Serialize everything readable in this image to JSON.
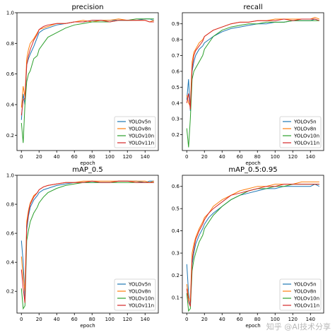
{
  "watermark": "知乎 @AI技术分享",
  "chart_data": [
    {
      "type": "line",
      "title": "precision",
      "xlabel": "epoch",
      "ylabel": "",
      "xlim": [
        -5,
        155
      ],
      "ylim": [
        0.1,
        1.0
      ],
      "xticks": [
        0,
        20,
        40,
        60,
        80,
        100,
        120,
        140
      ],
      "yticks": [
        0.2,
        0.4,
        0.6,
        0.8,
        1.0
      ],
      "legend": "bottom-right",
      "grid": false,
      "series": [
        {
          "name": "YOLOv5n",
          "color": "#1f77b4",
          "x": [
            0,
            2,
            4,
            6,
            8,
            10,
            14,
            18,
            20,
            25,
            30,
            40,
            50,
            60,
            70,
            80,
            90,
            100,
            110,
            120,
            130,
            140,
            145,
            150
          ],
          "y": [
            0.3,
            0.47,
            0.4,
            0.66,
            0.7,
            0.73,
            0.78,
            0.84,
            0.87,
            0.89,
            0.9,
            0.92,
            0.93,
            0.94,
            0.94,
            0.95,
            0.95,
            0.95,
            0.95,
            0.95,
            0.95,
            0.96,
            0.96,
            0.95
          ]
        },
        {
          "name": "YOLOv8n",
          "color": "#ff7f0e",
          "x": [
            0,
            2,
            4,
            6,
            8,
            10,
            14,
            18,
            20,
            25,
            30,
            40,
            50,
            60,
            70,
            80,
            90,
            100,
            110,
            120,
            130,
            140,
            145,
            150
          ],
          "y": [
            0.38,
            0.52,
            0.45,
            0.7,
            0.76,
            0.8,
            0.83,
            0.87,
            0.89,
            0.9,
            0.91,
            0.93,
            0.93,
            0.94,
            0.95,
            0.94,
            0.95,
            0.95,
            0.96,
            0.95,
            0.95,
            0.95,
            0.94,
            0.95
          ]
        },
        {
          "name": "YOLOv10n",
          "color": "#2ca02c",
          "x": [
            0,
            2,
            4,
            6,
            8,
            10,
            14,
            18,
            20,
            25,
            30,
            40,
            50,
            60,
            70,
            80,
            90,
            100,
            110,
            120,
            130,
            140,
            145,
            150
          ],
          "y": [
            0.28,
            0.15,
            0.4,
            0.55,
            0.6,
            0.62,
            0.7,
            0.72,
            0.76,
            0.8,
            0.84,
            0.87,
            0.9,
            0.92,
            0.93,
            0.94,
            0.94,
            0.94,
            0.95,
            0.95,
            0.96,
            0.96,
            0.96,
            0.96
          ]
        },
        {
          "name": "YOLOv11n",
          "color": "#d62728",
          "x": [
            0,
            2,
            4,
            6,
            8,
            10,
            14,
            18,
            20,
            25,
            30,
            40,
            50,
            60,
            70,
            80,
            90,
            100,
            110,
            120,
            130,
            140,
            145,
            150
          ],
          "y": [
            0.33,
            0.43,
            0.44,
            0.66,
            0.72,
            0.76,
            0.82,
            0.86,
            0.89,
            0.91,
            0.92,
            0.93,
            0.93,
            0.94,
            0.94,
            0.95,
            0.95,
            0.94,
            0.95,
            0.95,
            0.95,
            0.95,
            0.94,
            0.94
          ]
        }
      ]
    },
    {
      "type": "line",
      "title": "recall",
      "xlabel": "epoch",
      "ylabel": "",
      "xlim": [
        -5,
        155
      ],
      "ylim": [
        0.1,
        0.97
      ],
      "xticks": [
        0,
        20,
        40,
        60,
        80,
        100,
        120,
        140
      ],
      "yticks": [
        0.2,
        0.3,
        0.4,
        0.5,
        0.6,
        0.7,
        0.8,
        0.9
      ],
      "legend": "bottom-right",
      "grid": false,
      "series": [
        {
          "name": "YOLOv5n",
          "color": "#1f77b4",
          "x": [
            0,
            2,
            4,
            6,
            8,
            10,
            14,
            18,
            20,
            25,
            30,
            40,
            50,
            60,
            70,
            80,
            90,
            100,
            110,
            120,
            130,
            140,
            145,
            150
          ],
          "y": [
            0.42,
            0.55,
            0.35,
            0.6,
            0.66,
            0.7,
            0.74,
            0.76,
            0.78,
            0.8,
            0.82,
            0.85,
            0.87,
            0.88,
            0.89,
            0.9,
            0.9,
            0.91,
            0.91,
            0.92,
            0.92,
            0.92,
            0.93,
            0.92
          ]
        },
        {
          "name": "YOLOv8n",
          "color": "#ff7f0e",
          "x": [
            0,
            2,
            4,
            6,
            8,
            10,
            14,
            18,
            20,
            25,
            30,
            40,
            50,
            60,
            70,
            80,
            90,
            100,
            110,
            120,
            130,
            140,
            145,
            150
          ],
          "y": [
            0.45,
            0.4,
            0.38,
            0.66,
            0.72,
            0.74,
            0.78,
            0.8,
            0.82,
            0.84,
            0.86,
            0.88,
            0.9,
            0.91,
            0.91,
            0.92,
            0.92,
            0.93,
            0.93,
            0.93,
            0.93,
            0.93,
            0.94,
            0.93
          ]
        },
        {
          "name": "YOLOv10n",
          "color": "#2ca02c",
          "x": [
            0,
            2,
            4,
            6,
            8,
            10,
            14,
            18,
            20,
            25,
            30,
            40,
            50,
            60,
            70,
            80,
            90,
            100,
            110,
            120,
            130,
            140,
            145,
            150
          ],
          "y": [
            0.24,
            0.12,
            0.3,
            0.55,
            0.6,
            0.62,
            0.66,
            0.7,
            0.74,
            0.78,
            0.82,
            0.86,
            0.88,
            0.89,
            0.9,
            0.9,
            0.91,
            0.91,
            0.91,
            0.92,
            0.92,
            0.92,
            0.92,
            0.92
          ]
        },
        {
          "name": "YOLOv11n",
          "color": "#d62728",
          "x": [
            0,
            2,
            4,
            6,
            8,
            10,
            14,
            18,
            20,
            25,
            30,
            40,
            50,
            60,
            70,
            80,
            90,
            100,
            110,
            120,
            130,
            140,
            145,
            150
          ],
          "y": [
            0.4,
            0.46,
            0.36,
            0.62,
            0.7,
            0.73,
            0.76,
            0.79,
            0.82,
            0.84,
            0.86,
            0.88,
            0.9,
            0.91,
            0.91,
            0.92,
            0.92,
            0.92,
            0.93,
            0.92,
            0.93,
            0.93,
            0.93,
            0.92
          ]
        }
      ]
    },
    {
      "type": "line",
      "title": "mAP_0.5",
      "xlabel": "epoch",
      "ylabel": "",
      "xlim": [
        -5,
        155
      ],
      "ylim": [
        0.05,
        1.0
      ],
      "xticks": [
        0,
        20,
        40,
        60,
        80,
        100,
        120,
        140
      ],
      "yticks": [
        0.2,
        0.4,
        0.6,
        0.8,
        1.0
      ],
      "legend": "bottom-right",
      "grid": false,
      "series": [
        {
          "name": "YOLOv5n",
          "color": "#1f77b4",
          "x": [
            0,
            2,
            4,
            6,
            8,
            10,
            14,
            18,
            20,
            25,
            30,
            40,
            50,
            60,
            70,
            80,
            90,
            100,
            110,
            120,
            130,
            140,
            145,
            150
          ],
          "y": [
            0.55,
            0.4,
            0.15,
            0.62,
            0.72,
            0.78,
            0.83,
            0.86,
            0.88,
            0.9,
            0.91,
            0.93,
            0.94,
            0.95,
            0.95,
            0.95,
            0.95,
            0.95,
            0.96,
            0.96,
            0.96,
            0.95,
            0.96,
            0.96
          ]
        },
        {
          "name": "YOLOv8n",
          "color": "#ff7f0e",
          "x": [
            0,
            2,
            4,
            6,
            8,
            10,
            14,
            18,
            20,
            25,
            30,
            40,
            50,
            60,
            70,
            80,
            90,
            100,
            110,
            120,
            130,
            140,
            145,
            150
          ],
          "y": [
            0.44,
            0.3,
            0.2,
            0.68,
            0.76,
            0.81,
            0.86,
            0.88,
            0.9,
            0.92,
            0.93,
            0.94,
            0.95,
            0.95,
            0.96,
            0.96,
            0.96,
            0.96,
            0.96,
            0.96,
            0.96,
            0.96,
            0.95,
            0.96
          ]
        },
        {
          "name": "YOLOv10n",
          "color": "#2ca02c",
          "x": [
            0,
            2,
            4,
            6,
            8,
            10,
            14,
            18,
            20,
            25,
            30,
            40,
            50,
            60,
            70,
            80,
            90,
            100,
            110,
            120,
            130,
            140,
            145,
            150
          ],
          "y": [
            0.22,
            0.08,
            0.1,
            0.55,
            0.62,
            0.68,
            0.74,
            0.78,
            0.81,
            0.85,
            0.88,
            0.91,
            0.93,
            0.94,
            0.95,
            0.95,
            0.95,
            0.95,
            0.95,
            0.95,
            0.95,
            0.95,
            0.95,
            0.95
          ]
        },
        {
          "name": "YOLOv11n",
          "color": "#d62728",
          "x": [
            0,
            2,
            4,
            6,
            8,
            10,
            14,
            18,
            20,
            25,
            30,
            40,
            50,
            60,
            70,
            80,
            90,
            100,
            110,
            120,
            130,
            140,
            145,
            150
          ],
          "y": [
            0.35,
            0.22,
            0.12,
            0.65,
            0.74,
            0.8,
            0.85,
            0.88,
            0.9,
            0.92,
            0.93,
            0.94,
            0.95,
            0.95,
            0.95,
            0.96,
            0.95,
            0.95,
            0.96,
            0.96,
            0.95,
            0.95,
            0.95,
            0.95
          ]
        }
      ]
    },
    {
      "type": "line",
      "title": "mAP_0.5:0.95",
      "xlabel": "epoch",
      "ylabel": "",
      "xlim": [
        -5,
        155
      ],
      "ylim": [
        0.03,
        0.65
      ],
      "xticks": [
        0,
        20,
        40,
        60,
        80,
        100,
        120,
        140
      ],
      "yticks": [
        0.1,
        0.2,
        0.3,
        0.4,
        0.5,
        0.6
      ],
      "legend": "bottom-right",
      "grid": false,
      "series": [
        {
          "name": "YOLOv5n",
          "color": "#1f77b4",
          "x": [
            0,
            2,
            4,
            6,
            8,
            10,
            14,
            18,
            20,
            25,
            30,
            40,
            50,
            60,
            70,
            80,
            90,
            100,
            110,
            120,
            130,
            140,
            145,
            150
          ],
          "y": [
            0.25,
            0.12,
            0.06,
            0.25,
            0.3,
            0.34,
            0.38,
            0.41,
            0.43,
            0.46,
            0.48,
            0.51,
            0.54,
            0.56,
            0.57,
            0.58,
            0.59,
            0.59,
            0.6,
            0.6,
            0.6,
            0.6,
            0.61,
            0.6
          ]
        },
        {
          "name": "YOLOv8n",
          "color": "#ff7f0e",
          "x": [
            0,
            2,
            4,
            6,
            8,
            10,
            14,
            18,
            20,
            25,
            30,
            40,
            50,
            60,
            70,
            80,
            90,
            100,
            110,
            120,
            130,
            140,
            145,
            150
          ],
          "y": [
            0.16,
            0.1,
            0.08,
            0.3,
            0.34,
            0.37,
            0.41,
            0.44,
            0.46,
            0.48,
            0.51,
            0.54,
            0.56,
            0.58,
            0.59,
            0.6,
            0.6,
            0.61,
            0.61,
            0.61,
            0.62,
            0.62,
            0.62,
            0.62
          ]
        },
        {
          "name": "YOLOv10n",
          "color": "#2ca02c",
          "x": [
            0,
            2,
            4,
            6,
            8,
            10,
            14,
            18,
            20,
            25,
            30,
            40,
            50,
            60,
            70,
            80,
            90,
            100,
            110,
            120,
            130,
            140,
            145,
            150
          ],
          "y": [
            0.12,
            0.04,
            0.05,
            0.22,
            0.27,
            0.3,
            0.35,
            0.38,
            0.41,
            0.44,
            0.47,
            0.51,
            0.54,
            0.56,
            0.58,
            0.59,
            0.59,
            0.6,
            0.6,
            0.61,
            0.61,
            0.61,
            0.61,
            0.61
          ]
        },
        {
          "name": "YOLOv11n",
          "color": "#d62728",
          "x": [
            0,
            2,
            4,
            6,
            8,
            10,
            14,
            18,
            20,
            25,
            30,
            40,
            50,
            60,
            70,
            80,
            90,
            100,
            110,
            120,
            130,
            140,
            145,
            150
          ],
          "y": [
            0.14,
            0.08,
            0.06,
            0.27,
            0.32,
            0.36,
            0.4,
            0.43,
            0.45,
            0.48,
            0.5,
            0.53,
            0.56,
            0.57,
            0.58,
            0.59,
            0.6,
            0.6,
            0.61,
            0.61,
            0.61,
            0.61,
            0.61,
            0.61
          ]
        }
      ]
    }
  ]
}
